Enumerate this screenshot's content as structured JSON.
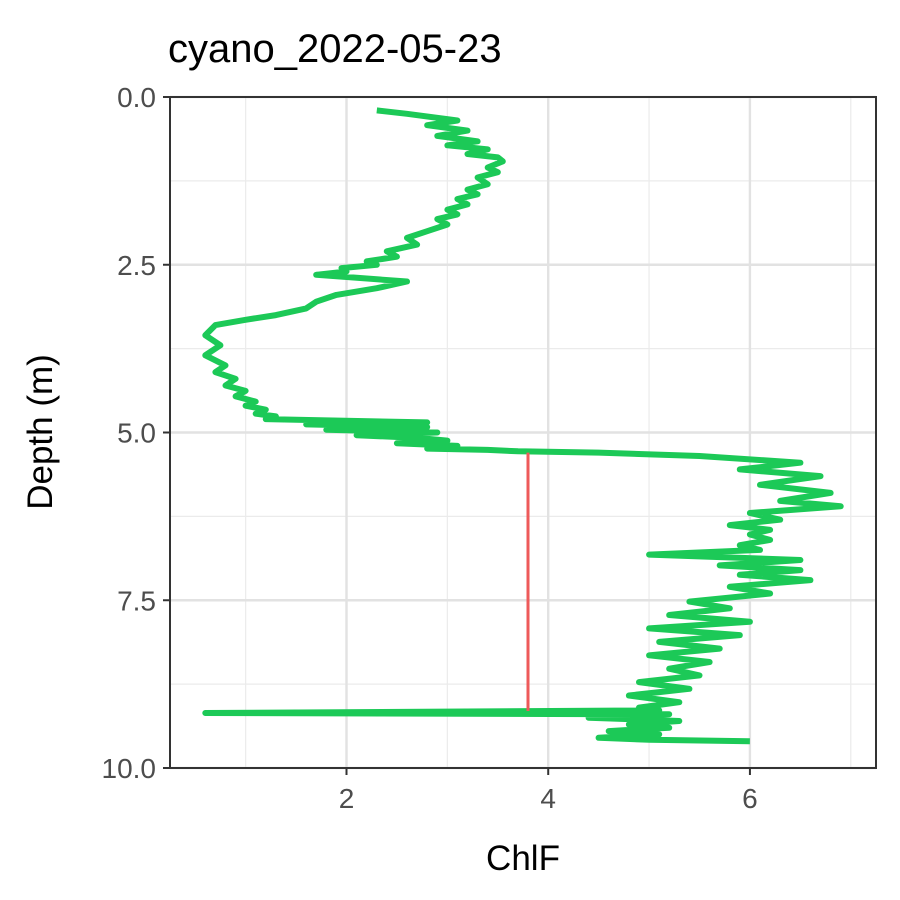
{
  "chart_data": {
    "type": "line",
    "title": "cyano_2022-05-23",
    "xlabel": "ChlF",
    "ylabel": "Depth (m)",
    "xlim": [
      0.25,
      7.25
    ],
    "ylim": [
      10.0,
      0.0
    ],
    "y_reversed": true,
    "x_ticks": [
      2,
      4,
      6
    ],
    "x_tick_labels": [
      "2",
      "4",
      "6"
    ],
    "y_ticks": [
      0.0,
      2.5,
      5.0,
      7.5,
      10.0
    ],
    "y_tick_labels": [
      "0.0",
      "2.5",
      "5.0",
      "7.5",
      "10.0"
    ],
    "grid": true,
    "legend": "none",
    "series": [
      {
        "color": "#1cc957",
        "x": [
          2.3,
          2.6,
          3.1,
          2.8,
          3.2,
          2.9,
          3.3,
          3.0,
          3.4,
          3.2,
          3.5,
          3.55,
          3.4,
          3.5,
          3.3,
          3.4,
          3.2,
          3.3,
          3.1,
          3.2,
          3.0,
          3.1,
          2.9,
          3.0,
          2.8,
          2.6,
          2.7,
          2.4,
          2.5,
          2.2,
          2.3,
          1.95,
          2.0,
          1.7,
          2.6,
          2.3,
          1.9,
          1.7,
          1.6,
          1.3,
          1.0,
          0.7,
          0.6,
          0.75,
          0.6,
          0.8,
          0.7,
          0.9,
          0.8,
          1.0,
          0.9,
          1.1,
          1.0,
          1.2,
          1.1,
          1.3,
          1.2,
          2.8,
          1.6,
          2.8,
          1.8,
          2.9,
          2.1,
          2.7,
          3.0,
          2.5,
          3.1,
          2.8,
          3.4,
          3.7,
          4.5,
          5.5,
          6.5,
          5.9,
          6.7,
          6.1,
          6.8,
          6.3,
          6.9,
          6.0,
          6.3,
          5.8,
          6.2,
          6.0,
          6.2,
          5.9,
          6.1,
          5.0,
          6.5,
          5.7,
          6.5,
          5.9,
          6.6,
          5.8,
          6.2,
          5.4,
          5.8,
          5.2,
          6.0,
          5.0,
          5.9,
          5.1,
          5.7,
          5.0,
          5.6,
          5.2,
          5.5,
          4.9,
          5.4,
          4.8,
          5.3,
          4.9,
          5.1,
          0.6,
          5.2,
          4.4,
          5.3,
          4.8,
          5.2,
          4.6,
          5.1,
          4.5,
          5.0,
          6.0
        ],
        "y": [
          0.2,
          0.25,
          0.35,
          0.42,
          0.5,
          0.58,
          0.66,
          0.72,
          0.78,
          0.85,
          0.9,
          0.96,
          1.05,
          1.12,
          1.2,
          1.3,
          1.38,
          1.45,
          1.52,
          1.6,
          1.68,
          1.75,
          1.82,
          1.9,
          2.0,
          2.1,
          2.2,
          2.3,
          2.38,
          2.45,
          2.5,
          2.55,
          2.6,
          2.65,
          2.75,
          2.85,
          2.95,
          3.05,
          3.15,
          3.25,
          3.32,
          3.4,
          3.55,
          3.7,
          3.85,
          4.0,
          4.1,
          4.2,
          4.3,
          4.38,
          4.46,
          4.54,
          4.6,
          4.66,
          4.72,
          4.76,
          4.8,
          4.85,
          4.88,
          4.92,
          4.96,
          5.0,
          5.04,
          5.08,
          5.12,
          5.16,
          5.2,
          5.24,
          5.26,
          5.28,
          5.3,
          5.35,
          5.45,
          5.55,
          5.65,
          5.78,
          5.9,
          6.02,
          6.1,
          6.2,
          6.3,
          6.38,
          6.45,
          6.52,
          6.6,
          6.68,
          6.75,
          6.82,
          6.9,
          6.98,
          7.05,
          7.12,
          7.2,
          7.3,
          7.4,
          7.52,
          7.62,
          7.72,
          7.82,
          7.92,
          8.02,
          8.12,
          8.22,
          8.32,
          8.42,
          8.52,
          8.62,
          8.72,
          8.82,
          8.92,
          9.02,
          9.1,
          9.14,
          9.18,
          9.2,
          9.25,
          9.3,
          9.35,
          9.4,
          9.45,
          9.5,
          9.55,
          9.58,
          9.6
        ]
      },
      {
        "color": "#ee5a5a",
        "x": [
          3.8,
          3.8
        ],
        "y": [
          5.3,
          9.15
        ]
      }
    ]
  }
}
